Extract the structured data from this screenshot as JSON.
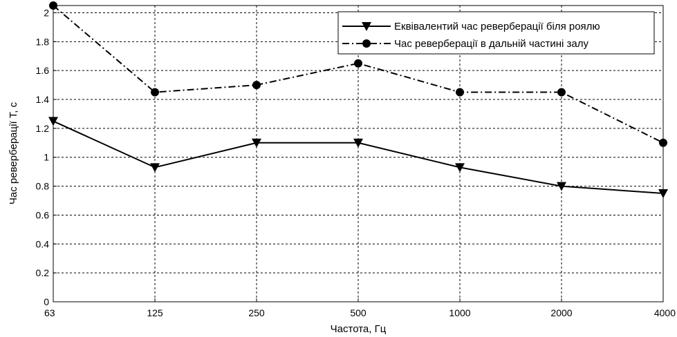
{
  "chart_data": {
    "type": "line",
    "categories": [
      "63",
      "125",
      "250",
      "500",
      "1000",
      "2000",
      "4000"
    ],
    "x_scale": "categorical",
    "title": "",
    "xlabel": "Частота, Гц",
    "ylabel": "Час реверберації T, с",
    "ylim": [
      0,
      2.05
    ],
    "yticks": [
      "0",
      "0.2",
      "0.4",
      "0.6",
      "0.8",
      "1",
      "1.2",
      "1.4",
      "1.6",
      "1.8",
      "2"
    ],
    "grid": true,
    "legend_position": "top-right",
    "series": [
      {
        "name": "Еквівалентий час реверберації біля роялю",
        "values": [
          1.25,
          0.93,
          1.1,
          1.1,
          0.93,
          0.8,
          0.75
        ],
        "line_style": "solid",
        "marker": "down-triangle",
        "color": "#000000"
      },
      {
        "name": "Час реверберації в дальній частині залу",
        "values": [
          2.05,
          1.45,
          1.5,
          1.65,
          1.45,
          1.45,
          1.1
        ],
        "line_style": "dash-dot",
        "marker": "circle",
        "color": "#000000"
      }
    ]
  }
}
